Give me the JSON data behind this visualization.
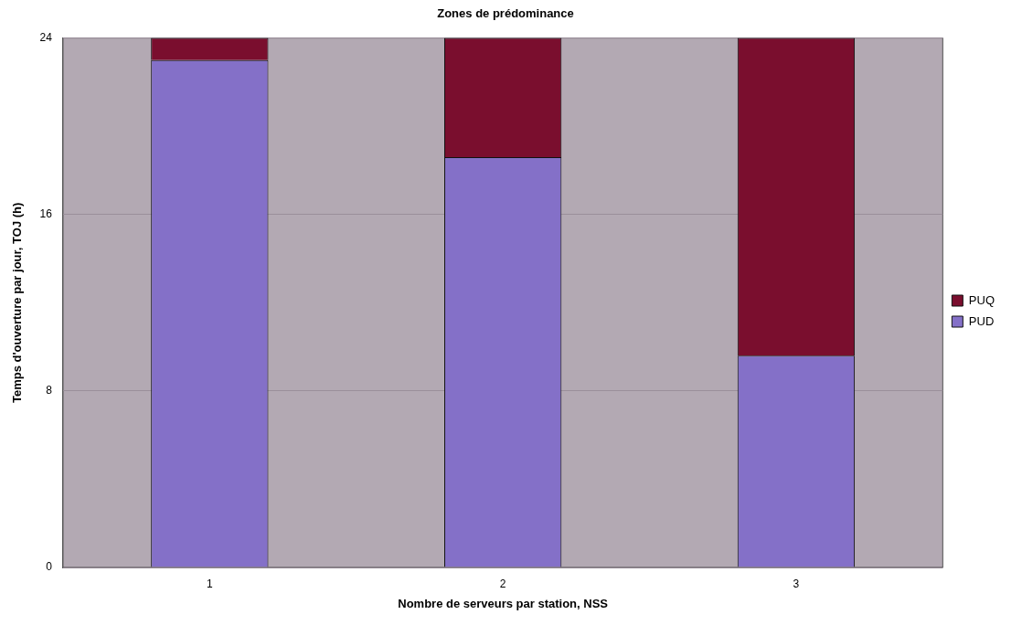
{
  "chart_data": {
    "type": "bar",
    "title": "Zones de prédominance",
    "xlabel": "Nombre de serveurs par station, NSS",
    "ylabel": "Temps d'ouverture par jour, TOJ (h)",
    "categories": [
      "1",
      "2",
      "3"
    ],
    "stacked": true,
    "series": [
      {
        "name": "PUD",
        "color": "#8470c8",
        "values": [
          23,
          18.6,
          9.6
        ]
      },
      {
        "name": "PUQ",
        "color": "#7a0e2e",
        "values": [
          1,
          5.4,
          14.4
        ]
      }
    ],
    "ylim": [
      0,
      24
    ],
    "yticks": [
      0,
      8,
      16,
      24
    ],
    "grid": "y",
    "legend": "right"
  }
}
